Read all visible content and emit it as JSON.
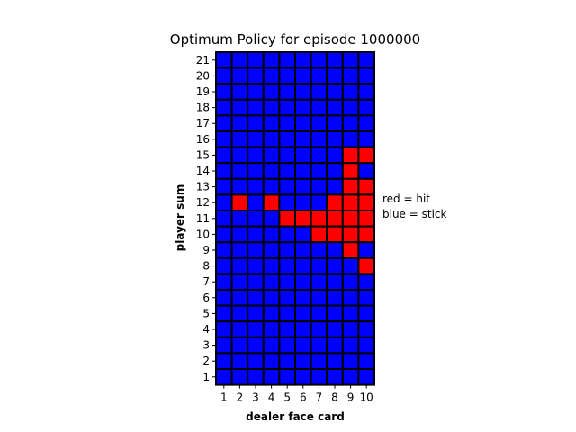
{
  "chart_data": {
    "type": "heatmap",
    "title": "Optimum Policy for episode 1000000",
    "xlabel": "dealer face card",
    "ylabel": "player sum",
    "x_categories": [
      "1",
      "2",
      "3",
      "4",
      "5",
      "6",
      "7",
      "8",
      "9",
      "10"
    ],
    "y_categories": [
      "21",
      "20",
      "19",
      "18",
      "17",
      "16",
      "15",
      "14",
      "13",
      "12",
      "11",
      "10",
      "9",
      "8",
      "7",
      "6",
      "5",
      "4",
      "3",
      "2",
      "1"
    ],
    "grid": true,
    "legend_placement": "right",
    "legend": [
      "red = hit",
      "blue = stick"
    ],
    "colors": {
      "hit": "#ff0000",
      "stick": "#0000ff",
      "grid": "#000000"
    },
    "hit_cells": [
      {
        "player_sum": 15,
        "dealer": 9
      },
      {
        "player_sum": 15,
        "dealer": 10
      },
      {
        "player_sum": 14,
        "dealer": 9
      },
      {
        "player_sum": 13,
        "dealer": 9
      },
      {
        "player_sum": 13,
        "dealer": 10
      },
      {
        "player_sum": 12,
        "dealer": 2
      },
      {
        "player_sum": 12,
        "dealer": 4
      },
      {
        "player_sum": 12,
        "dealer": 8
      },
      {
        "player_sum": 12,
        "dealer": 9
      },
      {
        "player_sum": 12,
        "dealer": 10
      },
      {
        "player_sum": 11,
        "dealer": 5
      },
      {
        "player_sum": 11,
        "dealer": 6
      },
      {
        "player_sum": 11,
        "dealer": 7
      },
      {
        "player_sum": 11,
        "dealer": 8
      },
      {
        "player_sum": 11,
        "dealer": 9
      },
      {
        "player_sum": 11,
        "dealer": 10
      },
      {
        "player_sum": 10,
        "dealer": 7
      },
      {
        "player_sum": 10,
        "dealer": 8
      },
      {
        "player_sum": 10,
        "dealer": 9
      },
      {
        "player_sum": 10,
        "dealer": 10
      },
      {
        "player_sum": 9,
        "dealer": 9
      },
      {
        "player_sum": 8,
        "dealer": 10
      }
    ]
  }
}
